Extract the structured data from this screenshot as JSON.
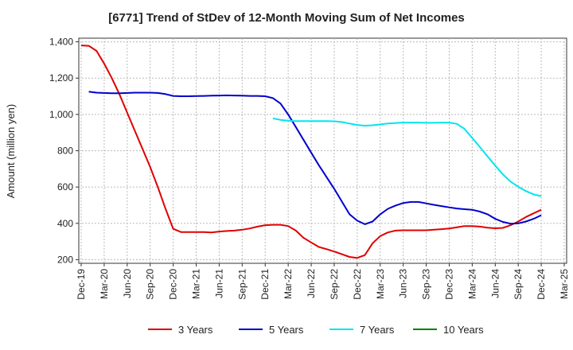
{
  "chart_data": {
    "type": "line",
    "title": "[6771]  Trend of StDev of 12-Month Moving Sum of Net Incomes",
    "ylabel": "Amount (million yen)",
    "xlabel": "",
    "ylim": [
      180,
      1420
    ],
    "yticks": [
      200,
      400,
      600,
      800,
      1000,
      1200,
      1400
    ],
    "ytick_labels": [
      "200",
      "400",
      "600",
      "800",
      "1,000",
      "1,200",
      "1,400"
    ],
    "xticks": [
      "Dec-19",
      "Mar-20",
      "Jun-20",
      "Sep-20",
      "Dec-20",
      "Mar-21",
      "Jun-21",
      "Sep-21",
      "Dec-21",
      "Mar-22",
      "Jun-22",
      "Sep-22",
      "Dec-22",
      "Mar-23",
      "Jun-23",
      "Sep-23",
      "Dec-23",
      "Mar-24",
      "Jun-24",
      "Sep-24",
      "Dec-24",
      "Mar-25"
    ],
    "grid": true,
    "legend_position": "bottom",
    "series": [
      {
        "name": "3 Years",
        "color": "#e00000",
        "points": [
          [
            "Dec-19",
            1380
          ],
          [
            "Jan-20",
            1378
          ],
          [
            "Feb-20",
            1350
          ],
          [
            "Mar-20",
            1280
          ],
          [
            "Apr-20",
            1200
          ],
          [
            "May-20",
            1110
          ],
          [
            "Jun-20",
            1010
          ],
          [
            "Jul-20",
            910
          ],
          [
            "Aug-20",
            810
          ],
          [
            "Sep-20",
            710
          ],
          [
            "Oct-20",
            600
          ],
          [
            "Nov-20",
            480
          ],
          [
            "Dec-20",
            370
          ],
          [
            "Jan-21",
            352
          ],
          [
            "Feb-21",
            352
          ],
          [
            "Mar-21",
            352
          ],
          [
            "Apr-21",
            352
          ],
          [
            "May-21",
            350
          ],
          [
            "Jun-21",
            355
          ],
          [
            "Jul-21",
            358
          ],
          [
            "Aug-21",
            360
          ],
          [
            "Sep-21",
            365
          ],
          [
            "Oct-21",
            372
          ],
          [
            "Nov-21",
            382
          ],
          [
            "Dec-21",
            390
          ],
          [
            "Jan-22",
            392
          ],
          [
            "Feb-22",
            392
          ],
          [
            "Mar-22",
            385
          ],
          [
            "Apr-22",
            360
          ],
          [
            "May-22",
            320
          ],
          [
            "Jun-22",
            295
          ],
          [
            "Jul-22",
            270
          ],
          [
            "Aug-22",
            258
          ],
          [
            "Sep-22",
            245
          ],
          [
            "Oct-22",
            230
          ],
          [
            "Nov-22",
            215
          ],
          [
            "Dec-22",
            210
          ],
          [
            "Jan-23",
            225
          ],
          [
            "Feb-23",
            290
          ],
          [
            "Mar-23",
            330
          ],
          [
            "Apr-23",
            350
          ],
          [
            "May-23",
            360
          ],
          [
            "Jun-23",
            362
          ],
          [
            "Jul-23",
            362
          ],
          [
            "Aug-23",
            362
          ],
          [
            "Sep-23",
            362
          ],
          [
            "Oct-23",
            365
          ],
          [
            "Nov-23",
            368
          ],
          [
            "Dec-23",
            372
          ],
          [
            "Jan-24",
            378
          ],
          [
            "Feb-24",
            385
          ],
          [
            "Mar-24",
            385
          ],
          [
            "Apr-24",
            382
          ],
          [
            "May-24",
            376
          ],
          [
            "Jun-24",
            373
          ],
          [
            "Jul-24",
            375
          ],
          [
            "Aug-24",
            390
          ],
          [
            "Sep-24",
            410
          ],
          [
            "Oct-24",
            435
          ],
          [
            "Nov-24",
            455
          ],
          [
            "Dec-24",
            475
          ]
        ]
      },
      {
        "name": "5 Years",
        "color": "#0000cc",
        "points": [
          [
            "Dec-19",
            null
          ],
          [
            "Jan-20",
            1125
          ],
          [
            "Feb-20",
            1120
          ],
          [
            "Mar-20",
            1118
          ],
          [
            "Apr-20",
            1117
          ],
          [
            "May-20",
            1117
          ],
          [
            "Jun-20",
            1118
          ],
          [
            "Jul-20",
            1120
          ],
          [
            "Aug-20",
            1120
          ],
          [
            "Sep-20",
            1120
          ],
          [
            "Oct-20",
            1118
          ],
          [
            "Nov-20",
            1112
          ],
          [
            "Dec-20",
            1102
          ],
          [
            "Jan-21",
            1100
          ],
          [
            "Feb-21",
            1100
          ],
          [
            "Mar-21",
            1101
          ],
          [
            "Apr-21",
            1102
          ],
          [
            "May-21",
            1103
          ],
          [
            "Jun-21",
            1104
          ],
          [
            "Jul-21",
            1105
          ],
          [
            "Aug-21",
            1104
          ],
          [
            "Sep-21",
            1103
          ],
          [
            "Oct-21",
            1102
          ],
          [
            "Nov-21",
            1102
          ],
          [
            "Dec-21",
            1100
          ],
          [
            "Jan-22",
            1090
          ],
          [
            "Feb-22",
            1060
          ],
          [
            "Mar-22",
            1000
          ],
          [
            "Apr-22",
            930
          ],
          [
            "May-22",
            860
          ],
          [
            "Jun-22",
            790
          ],
          [
            "Jul-22",
            720
          ],
          [
            "Aug-22",
            655
          ],
          [
            "Sep-22",
            590
          ],
          [
            "Oct-22",
            520
          ],
          [
            "Nov-22",
            450
          ],
          [
            "Dec-22",
            415
          ],
          [
            "Jan-23",
            395
          ],
          [
            "Feb-23",
            410
          ],
          [
            "Mar-23",
            450
          ],
          [
            "Apr-23",
            480
          ],
          [
            "May-23",
            498
          ],
          [
            "Jun-23",
            512
          ],
          [
            "Jul-23",
            518
          ],
          [
            "Aug-23",
            518
          ],
          [
            "Sep-23",
            510
          ],
          [
            "Oct-23",
            502
          ],
          [
            "Nov-23",
            495
          ],
          [
            "Dec-23",
            488
          ],
          [
            "Jan-24",
            482
          ],
          [
            "Feb-24",
            478
          ],
          [
            "Mar-24",
            475
          ],
          [
            "Apr-24",
            465
          ],
          [
            "May-24",
            450
          ],
          [
            "Jun-24",
            425
          ],
          [
            "Jul-24",
            408
          ],
          [
            "Aug-24",
            398
          ],
          [
            "Sep-24",
            400
          ],
          [
            "Oct-24",
            410
          ],
          [
            "Nov-24",
            425
          ],
          [
            "Dec-24",
            445
          ]
        ]
      },
      {
        "name": "7 Years",
        "color": "#00e5ee",
        "points": [
          [
            "Jan-22",
            978
          ],
          [
            "Feb-22",
            970
          ],
          [
            "Mar-22",
            965
          ],
          [
            "Apr-22",
            963
          ],
          [
            "May-22",
            963
          ],
          [
            "Jun-22",
            963
          ],
          [
            "Jul-22",
            963
          ],
          [
            "Aug-22",
            963
          ],
          [
            "Sep-22",
            962
          ],
          [
            "Oct-22",
            958
          ],
          [
            "Nov-22",
            950
          ],
          [
            "Dec-22",
            942
          ],
          [
            "Jan-23",
            938
          ],
          [
            "Feb-23",
            940
          ],
          [
            "Mar-23",
            945
          ],
          [
            "Apr-23",
            950
          ],
          [
            "May-23",
            953
          ],
          [
            "Jun-23",
            955
          ],
          [
            "Jul-23",
            955
          ],
          [
            "Aug-23",
            955
          ],
          [
            "Sep-23",
            954
          ],
          [
            "Oct-23",
            954
          ],
          [
            "Nov-23",
            955
          ],
          [
            "Dec-23",
            955
          ],
          [
            "Jan-24",
            948
          ],
          [
            "Feb-24",
            920
          ],
          [
            "Mar-24",
            870
          ],
          [
            "Apr-24",
            820
          ],
          [
            "May-24",
            768
          ],
          [
            "Jun-24",
            718
          ],
          [
            "Jul-24",
            670
          ],
          [
            "Aug-24",
            630
          ],
          [
            "Sep-24",
            602
          ],
          [
            "Oct-24",
            578
          ],
          [
            "Nov-24",
            560
          ],
          [
            "Dec-24",
            550
          ]
        ]
      },
      {
        "name": "10 Years",
        "color": "#008000",
        "points": []
      }
    ]
  }
}
